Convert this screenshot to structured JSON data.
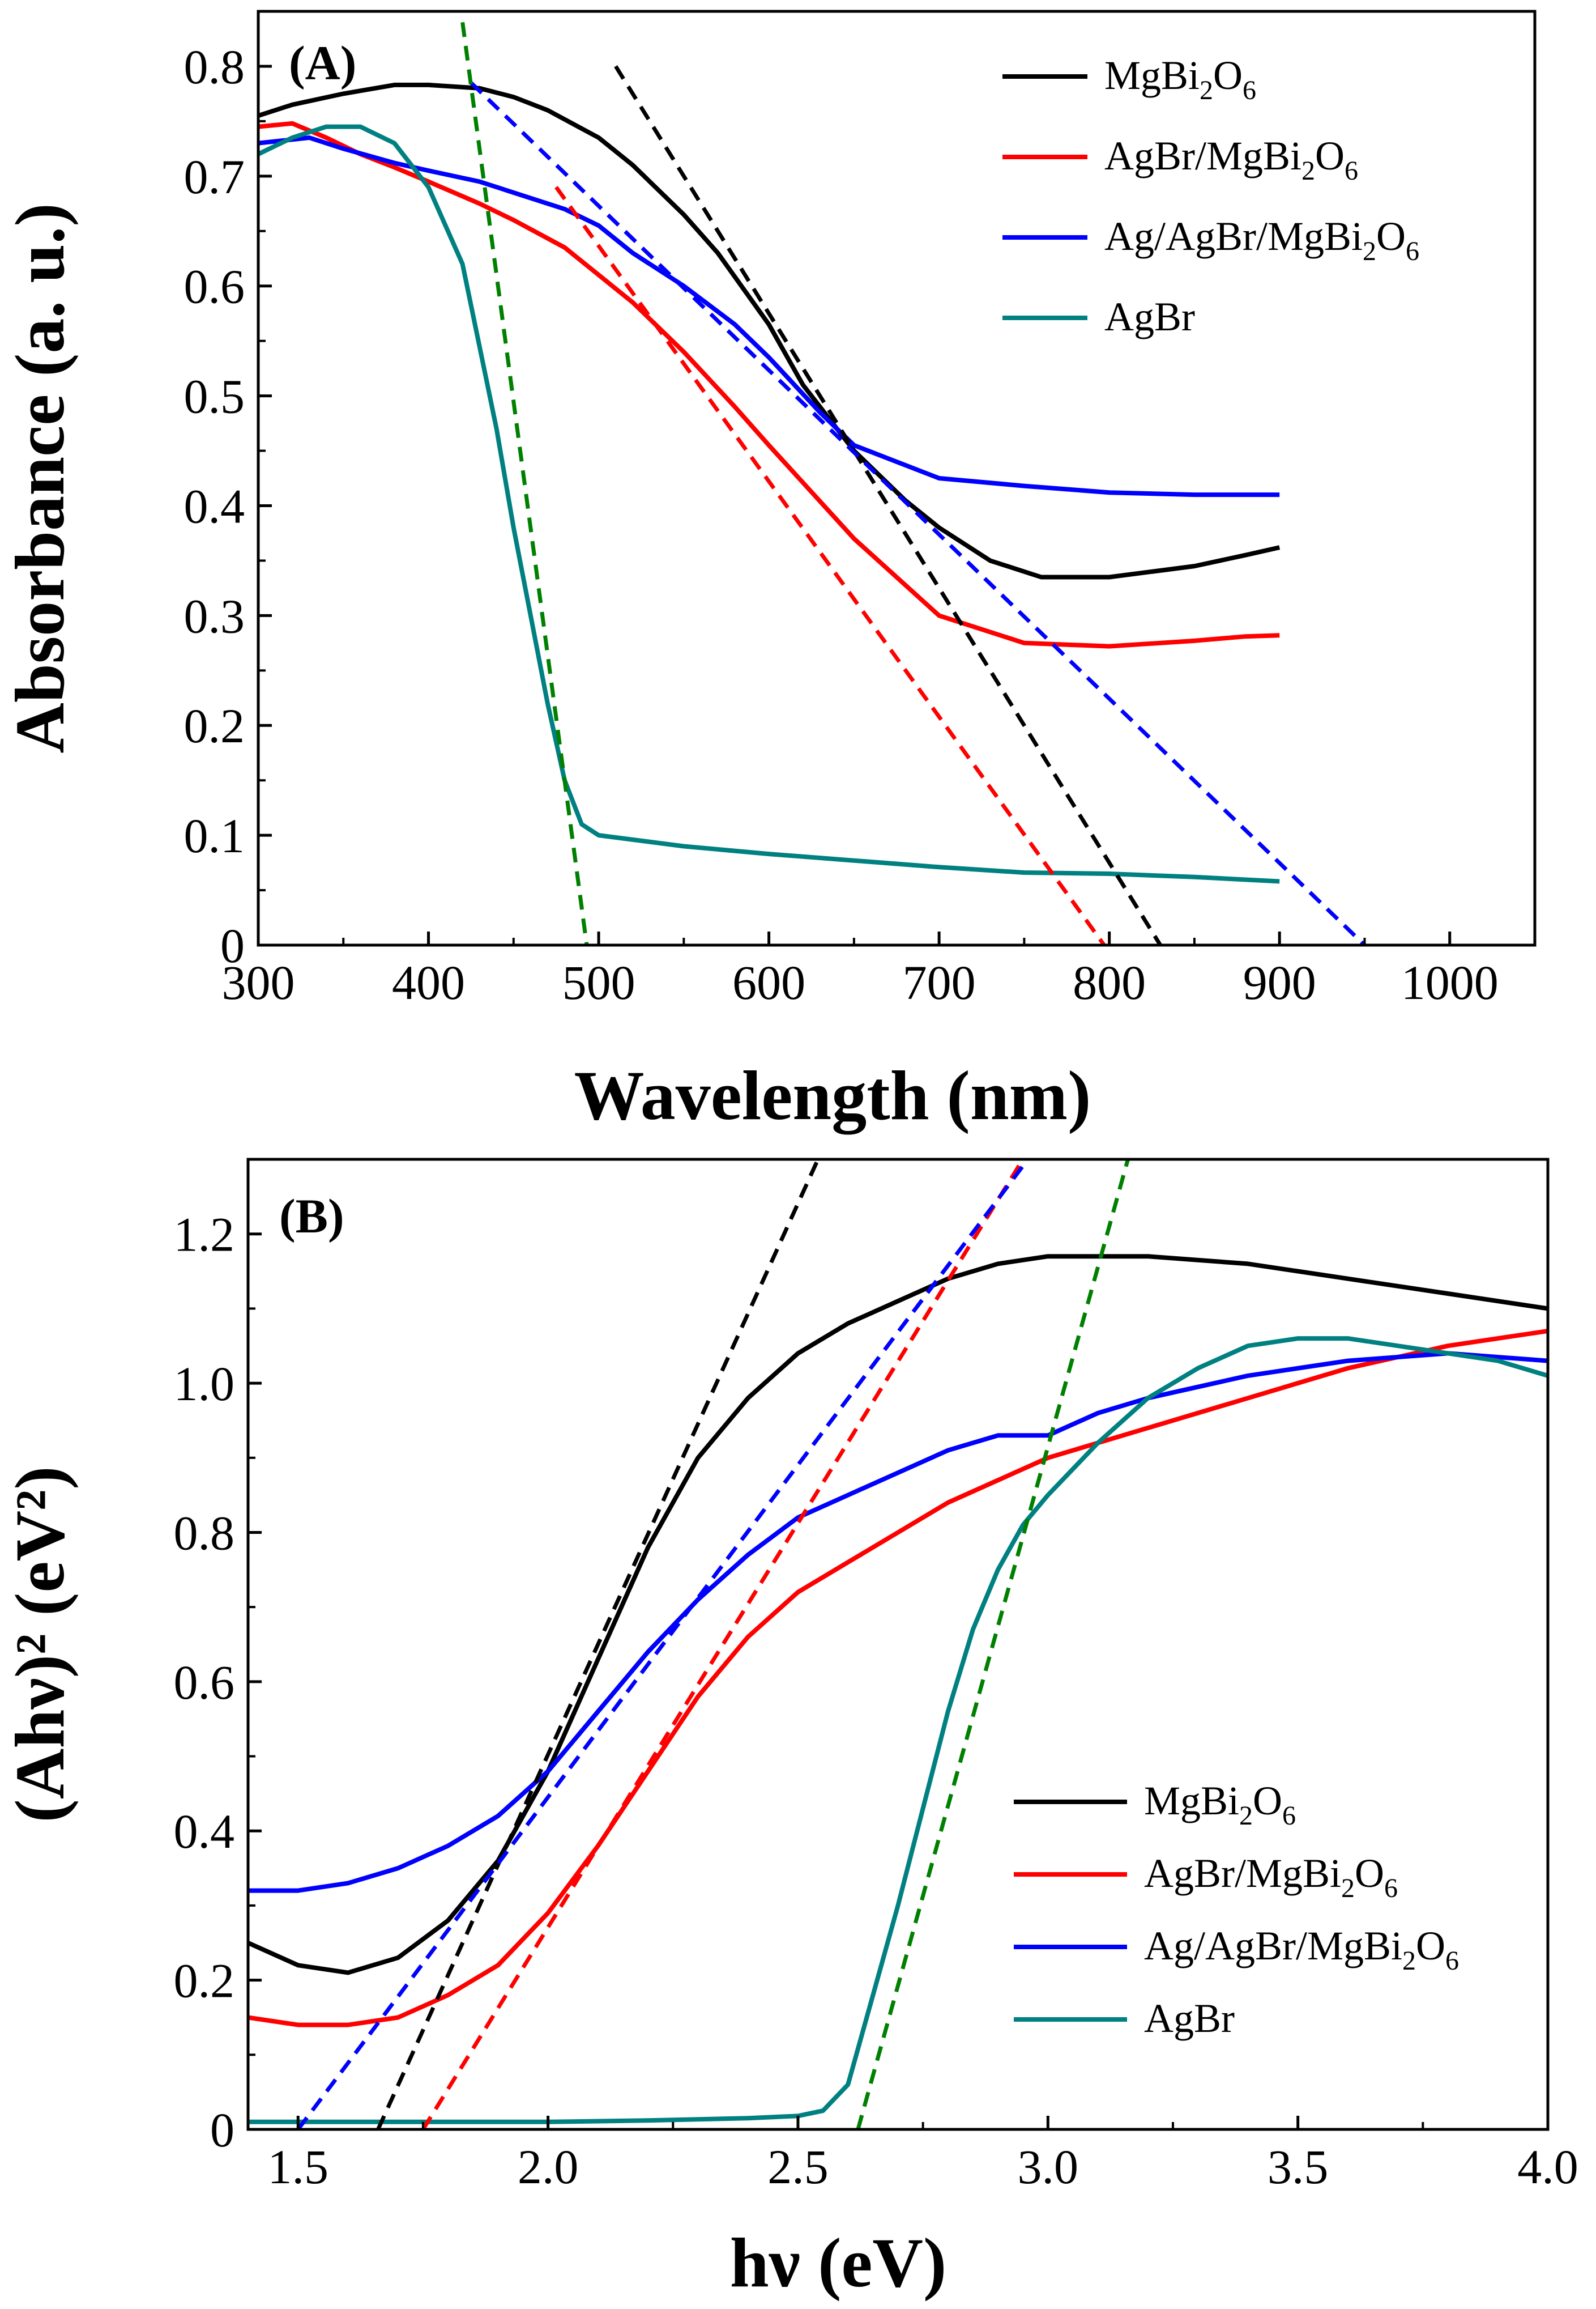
{
  "colors": {
    "MgBi2O6": "#000000",
    "AgBr/MgBi2O6": "#ff0000",
    "Ag/AgBr/MgBi2O6": "#0000ff",
    "AgBr": "#008080",
    "tangent_AgBr": "#008000"
  },
  "chart_data": [
    {
      "type": "line",
      "panel_label": "(A)",
      "xlabel": "Wavelength (nm)",
      "ylabel": "Absorbance (a. u.)",
      "xlim": [
        300,
        1050
      ],
      "ylim": [
        0,
        0.85
      ],
      "xticks": [
        300,
        400,
        500,
        600,
        700,
        800,
        900,
        1000
      ],
      "xtick_labels": [
        "300",
        "400",
        "500",
        "600",
        "700",
        "800",
        "900",
        "1000"
      ],
      "yticks": [
        0,
        0.1,
        0.2,
        0.3,
        0.4,
        0.5,
        0.6,
        0.7,
        0.8
      ],
      "ytick_labels": [
        "0",
        "0.1",
        "0.2",
        "0.3",
        "0.4",
        "0.5",
        "0.6",
        "0.7",
        "0.8"
      ],
      "legend_position": "top-right",
      "legend": [
        {
          "key": "MgBi2O6",
          "base": "MgBi",
          "s1": "2",
          "mid": "O",
          "s2": "6"
        },
        {
          "key": "AgBr/MgBi2O6",
          "base": "AgBr/MgBi",
          "s1": "2",
          "mid": "O",
          "s2": "6"
        },
        {
          "key": "Ag/AgBr/MgBi2O6",
          "base": "Ag/AgBr/MgBi",
          "s1": "2",
          "mid": "O",
          "s2": "6"
        },
        {
          "key": "AgBr",
          "base": "AgBr",
          "s1": "",
          "mid": "",
          "s2": ""
        }
      ],
      "series": [
        {
          "name": "MgBi2O6",
          "color_key": "MgBi2O6",
          "x": [
            300,
            320,
            350,
            380,
            400,
            430,
            450,
            470,
            500,
            520,
            550,
            570,
            600,
            620,
            650,
            680,
            700,
            730,
            760,
            800,
            850,
            880,
            900
          ],
          "y": [
            0.755,
            0.765,
            0.775,
            0.783,
            0.783,
            0.78,
            0.772,
            0.76,
            0.735,
            0.71,
            0.665,
            0.63,
            0.565,
            0.51,
            0.45,
            0.405,
            0.38,
            0.35,
            0.335,
            0.335,
            0.345,
            0.355,
            0.362
          ]
        },
        {
          "name": "AgBr/MgBi2O6",
          "color_key": "AgBr/MgBi2O6",
          "x": [
            300,
            320,
            340,
            360,
            380,
            400,
            430,
            450,
            480,
            500,
            520,
            550,
            580,
            600,
            650,
            700,
            750,
            800,
            850,
            880,
            900
          ],
          "y": [
            0.745,
            0.748,
            0.735,
            0.72,
            0.708,
            0.695,
            0.675,
            0.66,
            0.635,
            0.61,
            0.585,
            0.54,
            0.49,
            0.455,
            0.37,
            0.3,
            0.275,
            0.272,
            0.277,
            0.281,
            0.282
          ]
        },
        {
          "name": "Ag/AgBr/MgBi2O6",
          "color_key": "Ag/AgBr/MgBi2O6",
          "x": [
            300,
            330,
            350,
            380,
            400,
            430,
            450,
            480,
            500,
            520,
            550,
            580,
            600,
            630,
            650,
            700,
            750,
            800,
            850,
            900
          ],
          "y": [
            0.73,
            0.735,
            0.725,
            0.712,
            0.705,
            0.695,
            0.685,
            0.67,
            0.655,
            0.63,
            0.6,
            0.565,
            0.535,
            0.485,
            0.455,
            0.425,
            0.418,
            0.412,
            0.41,
            0.41
          ]
        },
        {
          "name": "AgBr",
          "color_key": "AgBr",
          "x": [
            300,
            320,
            340,
            360,
            380,
            400,
            420,
            440,
            450,
            460,
            470,
            480,
            490,
            500,
            550,
            600,
            650,
            700,
            750,
            800,
            850,
            900
          ],
          "y": [
            0.72,
            0.735,
            0.745,
            0.745,
            0.73,
            0.69,
            0.62,
            0.47,
            0.38,
            0.3,
            0.22,
            0.15,
            0.11,
            0.1,
            0.09,
            0.083,
            0.077,
            0.071,
            0.066,
            0.065,
            0.062,
            0.058
          ]
        }
      ],
      "tangents": [
        {
          "color_key": "MgBi2O6",
          "x": [
            510,
            830
          ],
          "y": [
            0.8,
            0.0
          ]
        },
        {
          "color_key": "AgBr/MgBi2O6",
          "x": [
            475,
            797
          ],
          "y": [
            0.69,
            0.0
          ]
        },
        {
          "color_key": "Ag/AgBr/MgBi2O6",
          "x": [
            425,
            950
          ],
          "y": [
            0.785,
            0.0
          ]
        },
        {
          "color_key": "tangent_AgBr",
          "x": [
            420,
            493
          ],
          "y": [
            0.84,
            0.0
          ]
        }
      ]
    },
    {
      "type": "line",
      "panel_label": "(B)",
      "xlabel": "hν (eV)",
      "ylabel": "(Ahν)² (eV²)",
      "xlim": [
        1.4,
        4.0
      ],
      "ylim": [
        0,
        1.3
      ],
      "xticks": [
        1.5,
        2.0,
        2.5,
        3.0,
        3.5,
        4.0
      ],
      "xtick_labels": [
        "1.5",
        "2.0",
        "2.5",
        "3.0",
        "3.5",
        "4.0"
      ],
      "yticks": [
        0,
        0.2,
        0.4,
        0.6,
        0.8,
        1.0,
        1.2
      ],
      "ytick_labels": [
        "0",
        "0.2",
        "0.4",
        "0.6",
        "0.8",
        "1.0",
        "1.2"
      ],
      "legend_position": "lower-right",
      "legend": [
        {
          "key": "MgBi2O6",
          "base": "MgBi",
          "s1": "2",
          "mid": "O",
          "s2": "6"
        },
        {
          "key": "AgBr/MgBi2O6",
          "base": "AgBr/MgBi",
          "s1": "2",
          "mid": "O",
          "s2": "6"
        },
        {
          "key": "Ag/AgBr/MgBi2O6",
          "base": "Ag/AgBr/MgBi",
          "s1": "2",
          "mid": "O",
          "s2": "6"
        },
        {
          "key": "AgBr",
          "base": "AgBr",
          "s1": "",
          "mid": "",
          "s2": ""
        }
      ],
      "series": [
        {
          "name": "MgBi2O6",
          "color_key": "MgBi2O6",
          "x": [
            1.4,
            1.5,
            1.6,
            1.7,
            1.8,
            1.9,
            2.0,
            2.1,
            2.2,
            2.3,
            2.4,
            2.5,
            2.6,
            2.7,
            2.8,
            2.9,
            3.0,
            3.1,
            3.2,
            3.4,
            3.6,
            3.8,
            4.0
          ],
          "y": [
            0.25,
            0.22,
            0.21,
            0.23,
            0.28,
            0.36,
            0.48,
            0.63,
            0.78,
            0.9,
            0.98,
            1.04,
            1.08,
            1.11,
            1.14,
            1.16,
            1.17,
            1.17,
            1.17,
            1.16,
            1.14,
            1.12,
            1.1
          ]
        },
        {
          "name": "AgBr/MgBi2O6",
          "color_key": "AgBr/MgBi2O6",
          "x": [
            1.4,
            1.5,
            1.6,
            1.7,
            1.8,
            1.9,
            2.0,
            2.1,
            2.2,
            2.3,
            2.4,
            2.5,
            2.6,
            2.7,
            2.8,
            2.9,
            3.0,
            3.1,
            3.2,
            3.4,
            3.6,
            3.8,
            4.0
          ],
          "y": [
            0.15,
            0.14,
            0.14,
            0.15,
            0.18,
            0.22,
            0.29,
            0.38,
            0.48,
            0.58,
            0.66,
            0.72,
            0.76,
            0.8,
            0.84,
            0.87,
            0.9,
            0.92,
            0.94,
            0.98,
            1.02,
            1.05,
            1.07
          ]
        },
        {
          "name": "Ag/AgBr/MgBi2O6",
          "color_key": "Ag/AgBr/MgBi2O6",
          "x": [
            1.4,
            1.5,
            1.6,
            1.7,
            1.8,
            1.9,
            2.0,
            2.1,
            2.2,
            2.3,
            2.4,
            2.5,
            2.6,
            2.7,
            2.8,
            2.9,
            3.0,
            3.1,
            3.2,
            3.4,
            3.6,
            3.8,
            4.0
          ],
          "y": [
            0.32,
            0.32,
            0.33,
            0.35,
            0.38,
            0.42,
            0.48,
            0.56,
            0.64,
            0.71,
            0.77,
            0.82,
            0.85,
            0.88,
            0.91,
            0.93,
            0.93,
            0.96,
            0.98,
            1.01,
            1.03,
            1.04,
            1.03
          ]
        },
        {
          "name": "AgBr",
          "color_key": "AgBr",
          "x": [
            1.4,
            1.6,
            1.8,
            2.0,
            2.2,
            2.4,
            2.5,
            2.55,
            2.6,
            2.65,
            2.7,
            2.75,
            2.8,
            2.85,
            2.9,
            2.95,
            3.0,
            3.1,
            3.2,
            3.3,
            3.4,
            3.5,
            3.6,
            3.7,
            3.8,
            3.9,
            4.0
          ],
          "y": [
            0.01,
            0.01,
            0.01,
            0.01,
            0.012,
            0.015,
            0.018,
            0.025,
            0.06,
            0.18,
            0.3,
            0.43,
            0.56,
            0.67,
            0.75,
            0.81,
            0.85,
            0.92,
            0.98,
            1.02,
            1.05,
            1.06,
            1.06,
            1.05,
            1.04,
            1.03,
            1.01
          ]
        }
      ],
      "tangents": [
        {
          "color_key": "MgBi2O6",
          "x": [
            1.66,
            2.54
          ],
          "y": [
            0.0,
            1.3
          ]
        },
        {
          "color_key": "AgBr/MgBi2O6",
          "x": [
            1.75,
            2.95
          ],
          "y": [
            0.0,
            1.3
          ]
        },
        {
          "color_key": "Ag/AgBr/MgBi2O6",
          "x": [
            1.5,
            2.96
          ],
          "y": [
            0.0,
            1.3
          ]
        },
        {
          "color_key": "tangent_AgBr",
          "x": [
            2.62,
            3.16
          ],
          "y": [
            0.0,
            1.3
          ]
        }
      ]
    }
  ]
}
